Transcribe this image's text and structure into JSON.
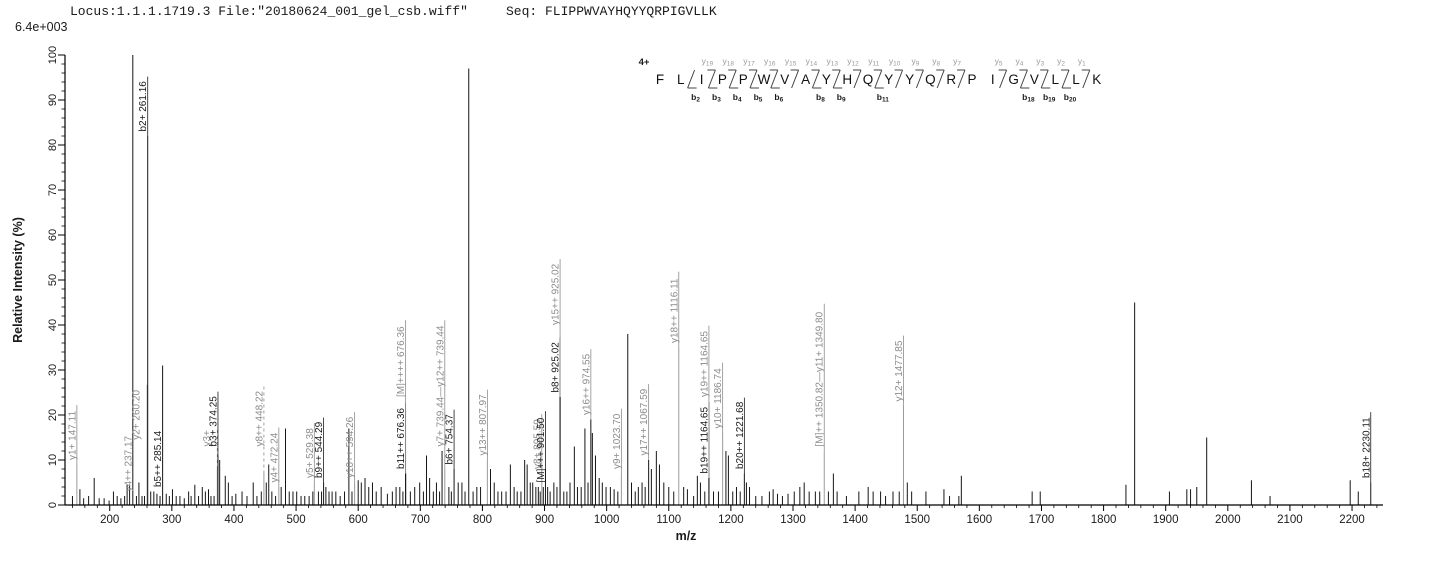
{
  "header": {
    "locus_file": "Locus:1.1.1.1719.3 File:\"20180624_001_gel_csb.wiff\"",
    "seq": "Seq: FLIPPWVAYHQYYQRPIGVLLK",
    "base_peak_intensity": "6.4e+003"
  },
  "colors": {
    "axis": "#000000",
    "peak_black": "#151515",
    "peak_gray": "#9a9a9a",
    "label_black": "#1a1a1a",
    "label_gray": "#8c8c8c",
    "ladder_mark": "#444444",
    "ladder_y_label": "#9a9a9a",
    "ladder_b_label": "#1a1a1a"
  },
  "sequence_ladder": {
    "precursor_charge": "4+",
    "residues": [
      "F",
      "L",
      "I",
      "P",
      "P",
      "W",
      "V",
      "A",
      "Y",
      "H",
      "Q",
      "Y",
      "Y",
      "Q",
      "R",
      "P",
      "I",
      "G",
      "V",
      "L",
      "L",
      "K"
    ],
    "cleavages": [
      {
        "gap": 2,
        "b": "b2"
      },
      {
        "gap": 3,
        "y": "y19",
        "b": "b3"
      },
      {
        "gap": 4,
        "y": "y18",
        "b": "b4"
      },
      {
        "gap": 5,
        "y": "y17",
        "b": "b5"
      },
      {
        "gap": 6,
        "y": "y16",
        "b": "b6"
      },
      {
        "gap": 7,
        "y": "y15"
      },
      {
        "gap": 8,
        "y": "y14",
        "b": "b8"
      },
      {
        "gap": 9,
        "y": "y13",
        "b": "b9"
      },
      {
        "gap": 10,
        "y": "y12"
      },
      {
        "gap": 11,
        "y": "y11",
        "b": "b11"
      },
      {
        "gap": 12,
        "y": "y10"
      },
      {
        "gap": 13,
        "y": "y9"
      },
      {
        "gap": 14,
        "y": "y8"
      },
      {
        "gap": 15,
        "y": "y7"
      },
      {
        "gap": 17,
        "y": "y5"
      },
      {
        "gap": 18,
        "y": "y4",
        "b": "b18"
      },
      {
        "gap": 19,
        "y": "y3",
        "b": "b19"
      },
      {
        "gap": 20,
        "y": "y2",
        "b": "b20"
      },
      {
        "gap": 21,
        "y": "y1"
      }
    ]
  },
  "chart_data": {
    "type": "bar",
    "kind": "ms2_fragment_ion_spectrum",
    "xlabel": "m/z",
    "ylabel": "Relative  Intensity (%)",
    "xlim": [
      128,
      2245
    ],
    "ylim": [
      0,
      100
    ],
    "x_ticks": [
      200,
      300,
      400,
      500,
      600,
      700,
      800,
      900,
      1000,
      1100,
      1200,
      1300,
      1400,
      1500,
      1600,
      1700,
      1800,
      1900,
      2000,
      2100,
      2200
    ],
    "x_minor_step": 20,
    "y_ticks": [
      0,
      10,
      20,
      30,
      40,
      50,
      60,
      70,
      80,
      90,
      100
    ],
    "y_minor_step": 2,
    "annotated_peaks": [
      {
        "label": "y1+ 147.11",
        "mz": 147.11,
        "intensity": 9,
        "label_start": 10,
        "ion": "y",
        "peak_gray": true
      },
      {
        "label": "y4++ 237.17",
        "mz": 237.17,
        "intensity": 100,
        "label_start": 3,
        "ion": "y",
        "peak_gray": false
      },
      {
        "label": "y2+ 260.20",
        "mz": 260.2,
        "intensity": 13,
        "label_start": 14.5,
        "ion": "y",
        "peak_gray": true,
        "dx": -6
      },
      {
        "label": "b2+ 261.16",
        "mz": 261.16,
        "intensity": 82,
        "label_start": 83,
        "ion": "b"
      },
      {
        "label": "b5++ 285.14",
        "mz": 285.14,
        "intensity": 31,
        "label_start": 4,
        "ion": "b"
      },
      {
        "label": "y3+",
        "mz": 373.2,
        "intensity": 8,
        "label_start": 13,
        "ion": "y",
        "peak_gray": true,
        "dashed": true,
        "dx": -6
      },
      {
        "label": "b3+ 374.25",
        "mz": 374.25,
        "intensity": 11,
        "label_start": 13,
        "ion": "b"
      },
      {
        "label": "y8++ 448.22",
        "mz": 448.22,
        "intensity": 7,
        "label_start": 13,
        "ion": "y",
        "peak_gray": true,
        "dashed": true
      },
      {
        "label": "y4+ 472.24",
        "mz": 472.24,
        "intensity": 4,
        "label_start": 5,
        "ion": "y",
        "peak_gray": true
      },
      {
        "label": "y5+ 529.38",
        "mz": 529.38,
        "intensity": 5,
        "label_start": 6,
        "ion": "y",
        "peak_gray": true
      },
      {
        "label": "b9++ 544.29",
        "mz": 544.29,
        "intensity": 5,
        "label_start": 6,
        "ion": "b"
      },
      {
        "label": "y10++ 594.26",
        "mz": 594.26,
        "intensity": 5,
        "label_start": 6,
        "ion": "y",
        "peak_gray": true
      },
      {
        "label": "b11++ 676.36",
        "mz": 676.36,
        "intensity": 7,
        "label_start": 8,
        "ion": "b"
      },
      {
        "label": "[M]++++ 676.36",
        "mz": 676.36,
        "intensity": 7,
        "label_start": 24,
        "ion": "y"
      },
      {
        "label": "y7+ 739.44—y12++ 739.44",
        "mz": 739.44,
        "intensity": 8,
        "label_start": 13,
        "ion": "y",
        "peak_gray": true
      },
      {
        "label": "b6+ 754.37",
        "mz": 754.37,
        "intensity": 8,
        "label_start": 9,
        "ion": "b"
      },
      {
        "label": "y13++ 807.97",
        "mz": 807.97,
        "intensity": 10,
        "label_start": 11,
        "ion": "y",
        "peak_gray": true
      },
      {
        "label": "y8+ 895.59",
        "mz": 895.59,
        "intensity": 6,
        "label_start": 8,
        "ion": "y",
        "peak_gray": true
      },
      {
        "label": "[M]+++ 901.50",
        "mz": 901.5,
        "intensity": 8,
        "label_start": 5,
        "ion": "b"
      },
      {
        "label": "b8+ 925.02",
        "mz": 925.02,
        "intensity": 24,
        "label_start": 25,
        "ion": "b"
      },
      {
        "label": "y15++ 925.02",
        "mz": 925.02,
        "intensity": 24,
        "label_start": 40,
        "ion": "y"
      },
      {
        "label": "y16++ 974.55",
        "mz": 974.55,
        "intensity": 19,
        "label_start": 20,
        "ion": "y"
      },
      {
        "label": "y9+ 1023.70",
        "mz": 1023.7,
        "intensity": 7,
        "label_start": 8,
        "ion": "y",
        "peak_gray": true
      },
      {
        "label": "y17++ 1067.59",
        "mz": 1067.59,
        "intensity": 10,
        "label_start": 11,
        "ion": "y"
      },
      {
        "label": "y18++ 1116.11",
        "mz": 1116.11,
        "intensity": 35,
        "label_start": 36,
        "ion": "y",
        "peak_gray": true
      },
      {
        "label": "b19++ 1164.65",
        "mz": 1164.65,
        "intensity": 6,
        "label_start": 7,
        "ion": "b"
      },
      {
        "label": "y19++ 1164.65",
        "mz": 1164.65,
        "intensity": 6,
        "label_start": 24,
        "ion": "y"
      },
      {
        "label": "y10+ 1186.74",
        "mz": 1186.74,
        "intensity": 16,
        "label_start": 17,
        "ion": "y",
        "peak_gray": true
      },
      {
        "label": "b20++ 1221.68",
        "mz": 1221.68,
        "intensity": 7,
        "label_start": 8,
        "ion": "b"
      },
      {
        "label": "[M]++ 1350.82—y11+ 1349.80",
        "mz": 1350.3,
        "intensity": 12,
        "label_start": 13,
        "ion": "y",
        "peak_gray": true
      },
      {
        "label": "y12+ 1477.85",
        "mz": 1477.85,
        "intensity": 22,
        "label_start": 23,
        "ion": "y",
        "peak_gray": true
      },
      {
        "label": "b18+ 2230.11",
        "mz": 2230.11,
        "intensity": 5,
        "label_start": 6,
        "ion": "b"
      }
    ],
    "unlabeled_peaks": [
      [
        140,
        2
      ],
      [
        152,
        3.5
      ],
      [
        158,
        1.5
      ],
      [
        166,
        2
      ],
      [
        175,
        6
      ],
      [
        183,
        1.5
      ],
      [
        191,
        1.5
      ],
      [
        199,
        1
      ],
      [
        206,
        3
      ],
      [
        212,
        2
      ],
      [
        218,
        1.5
      ],
      [
        224,
        2
      ],
      [
        228,
        4.5
      ],
      [
        232,
        4.5
      ],
      [
        243,
        2
      ],
      [
        247,
        5
      ],
      [
        252,
        2
      ],
      [
        256,
        2
      ],
      [
        266,
        3
      ],
      [
        271,
        3
      ],
      [
        276,
        2.5
      ],
      [
        281,
        2
      ],
      [
        291,
        2.5
      ],
      [
        296,
        2
      ],
      [
        301,
        3.5
      ],
      [
        307,
        2
      ],
      [
        313,
        2
      ],
      [
        320,
        1.5
      ],
      [
        327,
        3
      ],
      [
        331,
        2
      ],
      [
        337,
        4.5
      ],
      [
        343,
        2
      ],
      [
        349,
        4
      ],
      [
        354,
        3
      ],
      [
        359,
        3.5
      ],
      [
        363,
        2
      ],
      [
        368,
        2
      ],
      [
        377,
        10
      ],
      [
        386,
        6.5
      ],
      [
        391,
        5
      ],
      [
        397,
        2
      ],
      [
        403,
        2.5
      ],
      [
        413,
        3
      ],
      [
        421,
        2
      ],
      [
        431,
        5
      ],
      [
        437,
        2
      ],
      [
        444,
        3
      ],
      [
        452,
        5
      ],
      [
        456,
        9
      ],
      [
        461,
        3
      ],
      [
        467,
        2
      ],
      [
        476,
        4
      ],
      [
        483,
        17
      ],
      [
        489,
        3
      ],
      [
        495,
        3
      ],
      [
        501,
        3
      ],
      [
        508,
        2
      ],
      [
        514,
        2
      ],
      [
        521,
        2
      ],
      [
        527,
        3
      ],
      [
        536,
        3
      ],
      [
        541,
        3
      ],
      [
        548,
        4
      ],
      [
        553,
        3
      ],
      [
        558,
        3
      ],
      [
        564,
        3
      ],
      [
        571,
        2
      ],
      [
        578,
        3
      ],
      [
        585,
        17
      ],
      [
        590,
        3
      ],
      [
        600,
        5.5
      ],
      [
        605,
        5
      ],
      [
        611,
        6
      ],
      [
        617,
        4
      ],
      [
        623,
        5
      ],
      [
        629,
        3
      ],
      [
        637,
        4
      ],
      [
        647,
        2.5
      ],
      [
        655,
        3
      ],
      [
        661,
        4
      ],
      [
        667,
        4
      ],
      [
        672,
        3
      ],
      [
        684,
        3
      ],
      [
        691,
        4
      ],
      [
        699,
        5
      ],
      [
        705,
        3
      ],
      [
        710,
        11
      ],
      [
        715,
        6
      ],
      [
        721,
        3
      ],
      [
        726,
        5
      ],
      [
        731,
        3
      ],
      [
        735,
        12
      ],
      [
        746,
        4
      ],
      [
        750,
        3
      ],
      [
        761,
        5
      ],
      [
        767,
        5
      ],
      [
        772,
        3
      ],
      [
        778,
        97
      ],
      [
        785,
        3
      ],
      [
        791,
        4
      ],
      [
        797,
        4
      ],
      [
        813,
        8
      ],
      [
        819,
        5
      ],
      [
        825,
        3
      ],
      [
        831,
        3
      ],
      [
        838,
        3
      ],
      [
        845,
        9
      ],
      [
        851,
        4
      ],
      [
        856,
        3
      ],
      [
        862,
        3
      ],
      [
        868,
        10
      ],
      [
        872,
        9
      ],
      [
        877,
        5
      ],
      [
        881,
        5
      ],
      [
        886,
        4
      ],
      [
        890,
        4
      ],
      [
        893,
        3
      ],
      [
        898,
        4
      ],
      [
        905,
        4
      ],
      [
        909,
        3
      ],
      [
        915,
        5
      ],
      [
        920,
        4
      ],
      [
        931,
        3
      ],
      [
        936,
        3
      ],
      [
        941,
        5
      ],
      [
        948,
        13
      ],
      [
        953,
        4
      ],
      [
        959,
        4
      ],
      [
        965,
        17
      ],
      [
        970,
        5
      ],
      [
        977,
        16
      ],
      [
        982,
        11
      ],
      [
        988,
        6
      ],
      [
        993,
        5
      ],
      [
        999,
        4
      ],
      [
        1006,
        4
      ],
      [
        1012,
        3.5
      ],
      [
        1018,
        3
      ],
      [
        1034,
        38
      ],
      [
        1040,
        5
      ],
      [
        1046,
        3
      ],
      [
        1051,
        4
      ],
      [
        1057,
        5
      ],
      [
        1062,
        4
      ],
      [
        1072,
        8
      ],
      [
        1080,
        12
      ],
      [
        1085,
        9
      ],
      [
        1092,
        5
      ],
      [
        1100,
        4
      ],
      [
        1108,
        3
      ],
      [
        1124,
        4
      ],
      [
        1130,
        3.5
      ],
      [
        1140,
        2
      ],
      [
        1146,
        6.5
      ],
      [
        1151,
        5
      ],
      [
        1158,
        3
      ],
      [
        1172,
        3
      ],
      [
        1180,
        3
      ],
      [
        1192,
        12
      ],
      [
        1196,
        11
      ],
      [
        1203,
        3
      ],
      [
        1209,
        4
      ],
      [
        1215,
        3
      ],
      [
        1225,
        5
      ],
      [
        1230,
        4
      ],
      [
        1240,
        2
      ],
      [
        1250,
        2
      ],
      [
        1262,
        3
      ],
      [
        1268,
        3.5
      ],
      [
        1275,
        2.5
      ],
      [
        1283,
        2
      ],
      [
        1292,
        2.5
      ],
      [
        1302,
        3
      ],
      [
        1311,
        4
      ],
      [
        1318,
        5
      ],
      [
        1326,
        3
      ],
      [
        1336,
        3
      ],
      [
        1343,
        3
      ],
      [
        1357,
        3
      ],
      [
        1365,
        7
      ],
      [
        1371,
        3
      ],
      [
        1386,
        2
      ],
      [
        1406,
        3
      ],
      [
        1421,
        4
      ],
      [
        1429,
        3
      ],
      [
        1441,
        3
      ],
      [
        1449,
        2
      ],
      [
        1461,
        3
      ],
      [
        1471,
        3
      ],
      [
        1484,
        5
      ],
      [
        1491,
        3
      ],
      [
        1514,
        3
      ],
      [
        1543,
        3.5
      ],
      [
        1552,
        2
      ],
      [
        1567,
        2
      ],
      [
        1571,
        6.5
      ],
      [
        1685,
        3
      ],
      [
        1698,
        3
      ],
      [
        1836,
        4.5
      ],
      [
        1850,
        45
      ],
      [
        1906,
        3
      ],
      [
        1934,
        3.5
      ],
      [
        1940,
        3.5
      ],
      [
        1950,
        4
      ],
      [
        1966,
        15
      ],
      [
        2038,
        5.5
      ],
      [
        2068,
        2
      ],
      [
        2197,
        5.5
      ],
      [
        2210,
        3
      ]
    ]
  }
}
